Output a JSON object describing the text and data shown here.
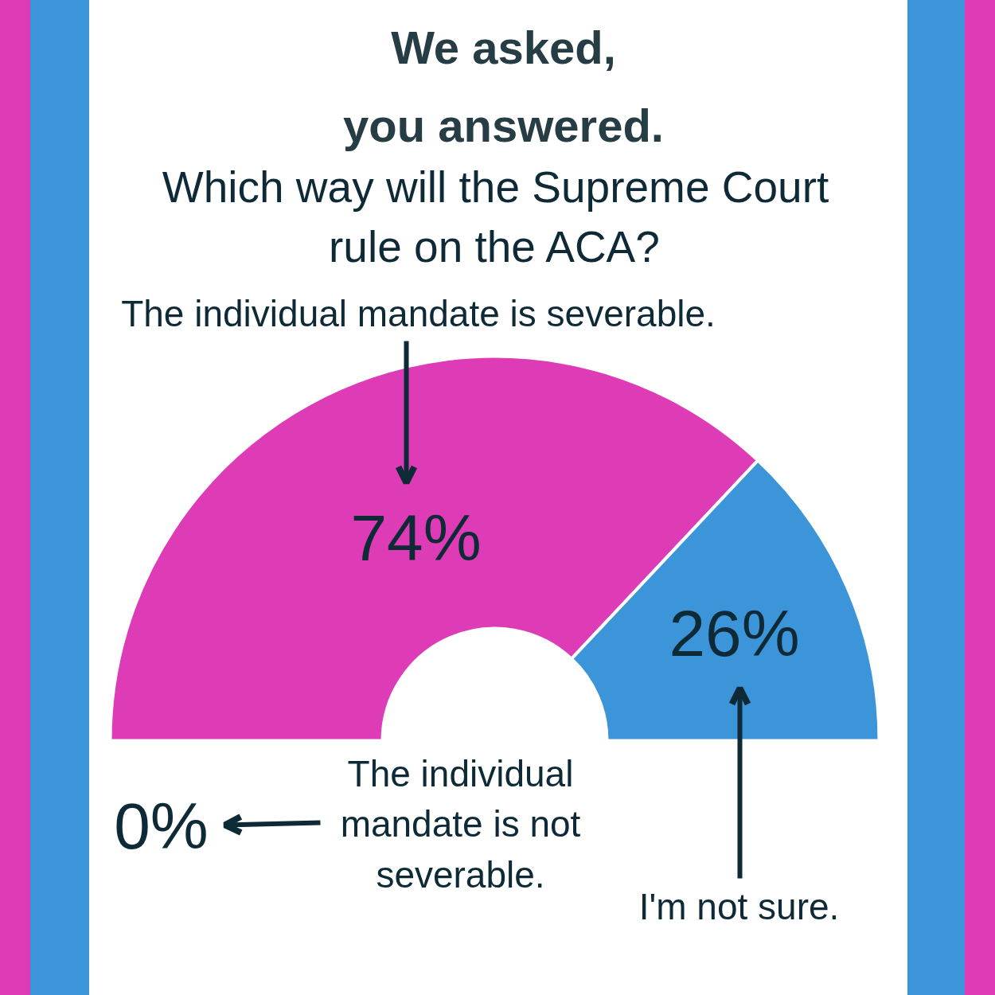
{
  "chart_data": {
    "type": "donut",
    "title": "We asked,\nyou answered.",
    "subtitle": "Which way will the Supreme Court\nrule on the ACA?",
    "categories": [
      "The individual\nmandate is not\nseverable.",
      "The individual mandate is severable.",
      "I'm not sure."
    ],
    "values": [
      0,
      74,
      26
    ],
    "colors": [
      null,
      "#de3bb6",
      "#3d95d9"
    ],
    "value_labels": [
      "0%",
      "74%",
      "26%"
    ]
  }
}
